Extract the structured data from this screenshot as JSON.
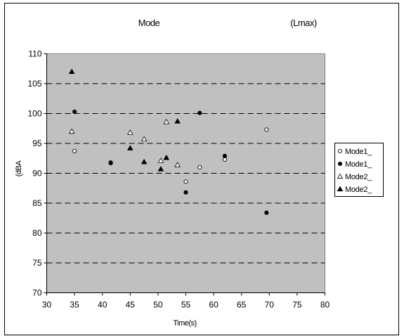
{
  "chart_data": {
    "type": "scatter",
    "title": "Mode",
    "title_right": "(Lmax)",
    "xlabel": "Time(s)",
    "ylabel": "(dBA",
    "xlim": [
      30,
      80
    ],
    "ylim": [
      70,
      110
    ],
    "x_ticks": [
      30,
      35,
      40,
      45,
      50,
      55,
      60,
      65,
      70,
      75,
      80
    ],
    "y_ticks": [
      70,
      75,
      80,
      85,
      90,
      95,
      100,
      105,
      110
    ],
    "grid": true,
    "legend_position": "right",
    "series": [
      {
        "name": "Mode1_",
        "marker": "circle-open",
        "points": [
          [
            35,
            93.7
          ],
          [
            41.5,
            91.8
          ],
          [
            55,
            88.6
          ],
          [
            57.5,
            91
          ],
          [
            62,
            92.3
          ],
          [
            69.5,
            97.3
          ]
        ]
      },
      {
        "name": "Mode1_",
        "marker": "circle-filled",
        "points": [
          [
            35,
            100.3
          ],
          [
            41.5,
            91.7
          ],
          [
            55,
            86.8
          ],
          [
            57.5,
            100.1
          ],
          [
            62,
            92.9
          ],
          [
            69.5,
            83.4
          ]
        ]
      },
      {
        "name": "Mode2_",
        "marker": "triangle-open",
        "points": [
          [
            34.5,
            97
          ],
          [
            45,
            96.8
          ],
          [
            47.5,
            95.7
          ],
          [
            50.5,
            92.1
          ],
          [
            51.5,
            98.6
          ],
          [
            53.5,
            91.4
          ]
        ]
      },
      {
        "name": "Mode2_",
        "marker": "triangle-filled",
        "points": [
          [
            34.5,
            107
          ],
          [
            45,
            94.2
          ],
          [
            47.5,
            91.9
          ],
          [
            50.5,
            90.7
          ],
          [
            51.5,
            92.6
          ],
          [
            53.5,
            98.7
          ]
        ]
      }
    ]
  }
}
